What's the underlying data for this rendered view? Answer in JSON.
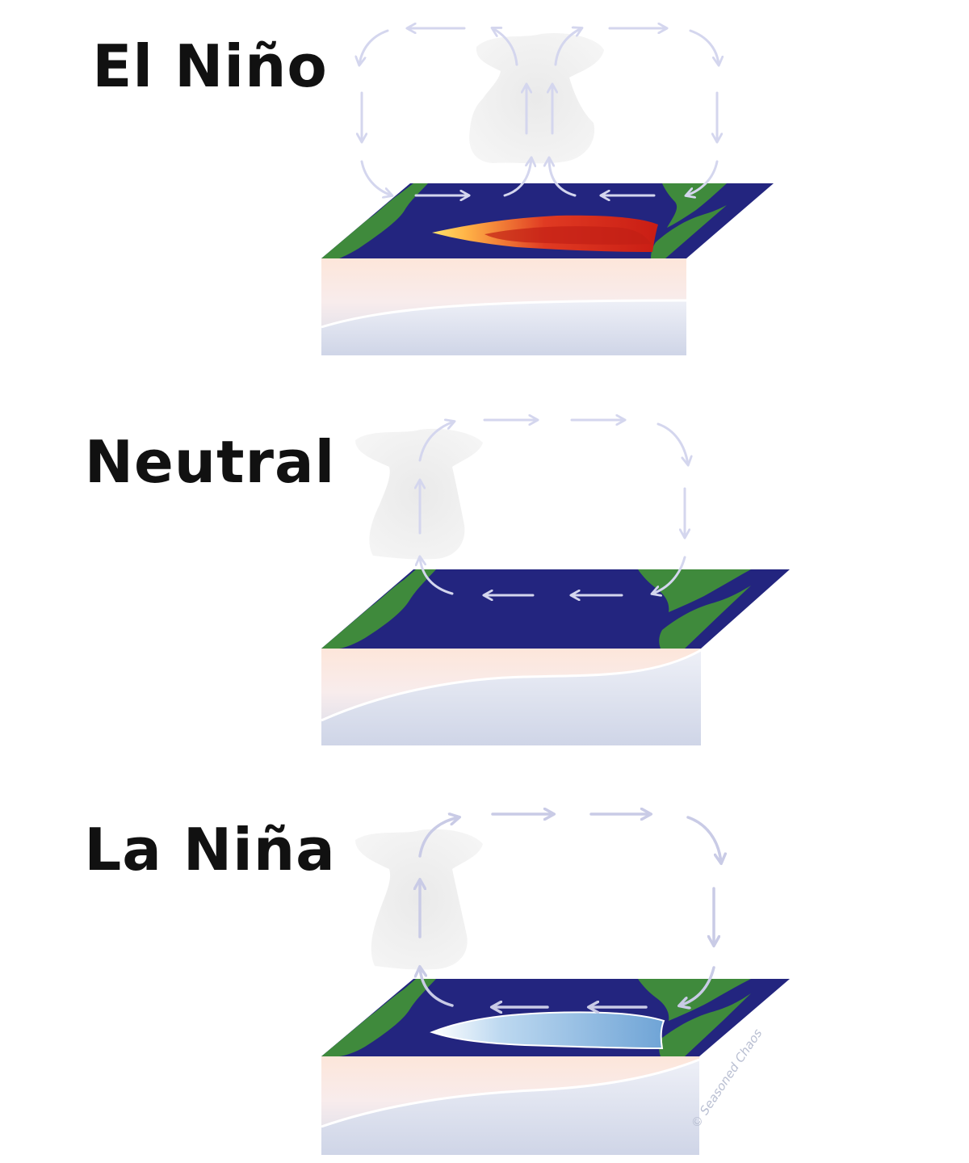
{
  "panels": [
    {
      "title": "El Niño"
    },
    {
      "title": "Neutral"
    },
    {
      "title": "La Niña"
    }
  ],
  "watermark": "© Seasoned Chaos",
  "colors": {
    "ocean": "#23257f",
    "land": "#3f8a3c",
    "arrow": "#d9dbf0",
    "warm_anomaly": "#d62a1b",
    "cold_anomaly": "#7fb3de",
    "cloud": "#e6e6e6"
  }
}
